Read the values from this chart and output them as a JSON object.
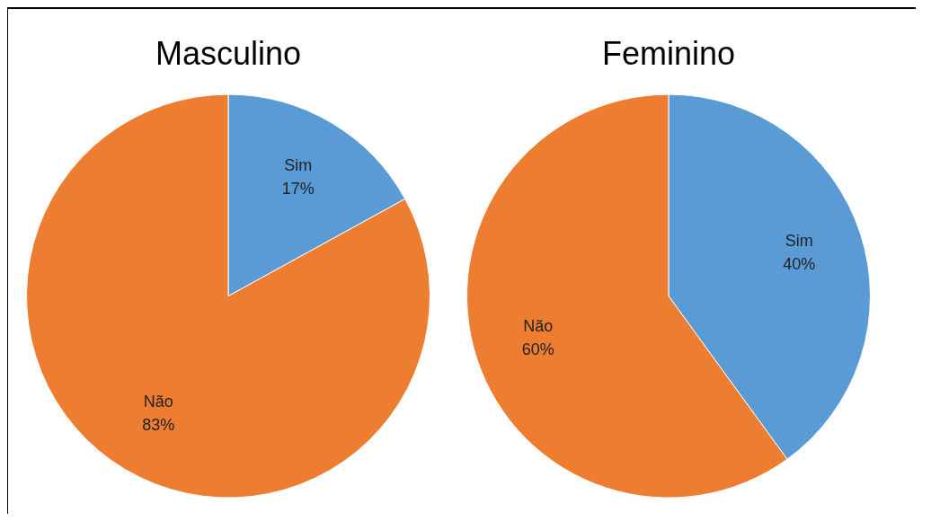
{
  "chart_data": [
    {
      "type": "pie",
      "title": "Masculino",
      "categories": [
        "Sim",
        "Não"
      ],
      "values": [
        17,
        83
      ],
      "value_labels": [
        "17%",
        "83%"
      ],
      "colors": [
        "#5b9bd5",
        "#ed7d31"
      ],
      "legend": false
    },
    {
      "type": "pie",
      "title": "Feminino",
      "categories": [
        "Sim",
        "Não"
      ],
      "values": [
        40,
        60
      ],
      "value_labels": [
        "40%",
        "60%"
      ],
      "colors": [
        "#5b9bd5",
        "#ed7d31"
      ],
      "legend": false
    }
  ]
}
